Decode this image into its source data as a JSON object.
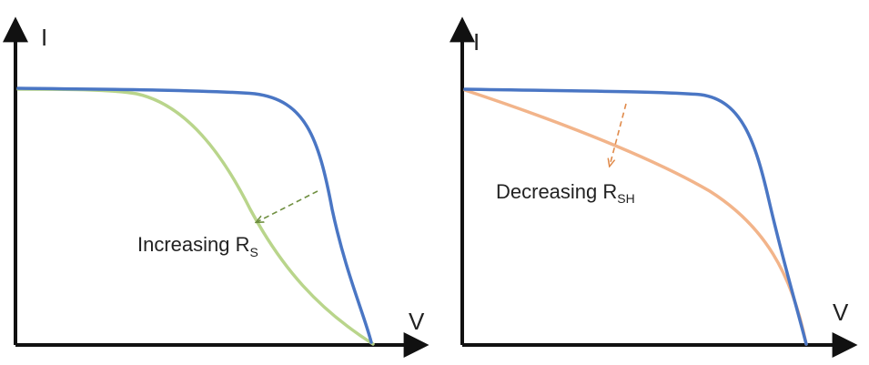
{
  "colors": {
    "axis": "#111111",
    "reference_curve": "#4a76c4",
    "rs_curve": "#b9d58b",
    "rsh_curve": "#f2b48a",
    "rs_arrow": "#6f8f40",
    "rsh_arrow": "#e08a4a",
    "background": "#ffffff"
  },
  "panels": [
    {
      "y_axis_label": "I",
      "x_axis_label": "V",
      "annotation": {
        "main": "Increasing R",
        "sub": "S"
      }
    },
    {
      "y_axis_label": "I",
      "x_axis_label": "V",
      "annotation": {
        "main": "Decreasing R",
        "sub": "SH"
      }
    }
  ]
}
